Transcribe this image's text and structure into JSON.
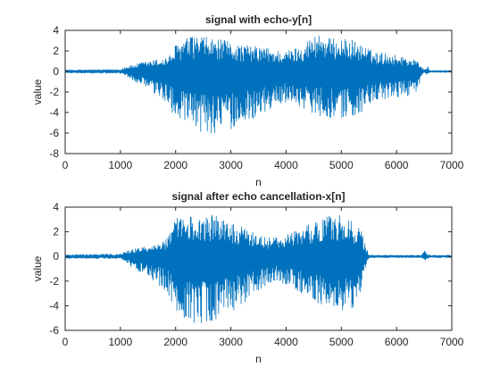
{
  "colors": {
    "line": "#0072BD",
    "axis": "#262626",
    "background": "#ffffff"
  },
  "chart_data": [
    {
      "type": "line",
      "title": "signal with echo-y[n]",
      "xlabel": "n",
      "ylabel": "value",
      "xlim": [
        0,
        7000
      ],
      "ylim": [
        -8,
        4
      ],
      "xticks": [
        0,
        1000,
        2000,
        3000,
        4000,
        5000,
        6000,
        7000
      ],
      "yticks": [
        -8,
        -6,
        -4,
        -2,
        0,
        2,
        4
      ],
      "grid": false,
      "legend": "none",
      "series": [
        {
          "color": "#0072BD",
          "envelope": {
            "n": [
              0,
              1000,
              1100,
              1200,
              1400,
              1600,
              1800,
              1900,
              2000,
              2200,
              2400,
              2600,
              2800,
              3000,
              3200,
              3400,
              3600,
              3800,
              4000,
              4200,
              4400,
              4600,
              4800,
              5000,
              5200,
              5400,
              5600,
              5800,
              6000,
              6200,
              6400,
              6450,
              6500,
              6560,
              6600,
              7000
            ],
            "upper": [
              0.15,
              0.2,
              0.5,
              0.6,
              0.9,
              1.1,
              1.3,
              1.6,
              2.6,
              3.3,
              3.5,
              3.3,
              3.1,
              2.9,
              2.6,
              2.5,
              2.4,
              2.1,
              2.0,
              2.4,
              3.1,
              3.9,
              3.2,
              3.2,
              3.1,
              2.5,
              1.9,
              1.8,
              1.6,
              1.4,
              1.0,
              0.5,
              0.2,
              0.5,
              0.1,
              0.1
            ],
            "lower": [
              -0.15,
              -0.2,
              -0.5,
              -0.8,
              -1.5,
              -2.2,
              -3.0,
              -3.6,
              -4.6,
              -5.6,
              -6.0,
              -6.2,
              -5.9,
              -5.7,
              -5.1,
              -4.6,
              -4.1,
              -3.5,
              -3.0,
              -3.2,
              -3.9,
              -4.3,
              -4.5,
              -4.8,
              -4.4,
              -4.0,
              -3.2,
              -2.8,
              -2.6,
              -2.4,
              -1.8,
              -0.5,
              -0.2,
              -0.4,
              -0.1,
              -0.1
            ]
          }
        }
      ]
    },
    {
      "type": "line",
      "title": "signal after echo cancellation-x[n]",
      "xlabel": "n",
      "ylabel": "value",
      "xlim": [
        0,
        7000
      ],
      "ylim": [
        -6,
        4
      ],
      "xticks": [
        0,
        1000,
        2000,
        3000,
        4000,
        5000,
        6000,
        7000
      ],
      "yticks": [
        -6,
        -4,
        -2,
        0,
        2,
        4
      ],
      "grid": false,
      "legend": "none",
      "series": [
        {
          "color": "#0072BD",
          "envelope": {
            "n": [
              0,
              1000,
              1100,
              1200,
              1400,
              1600,
              1800,
              1900,
              2000,
              2200,
              2400,
              2600,
              2800,
              3000,
              3200,
              3400,
              3600,
              3800,
              4000,
              4200,
              4400,
              4600,
              4800,
              5000,
              5200,
              5350,
              5450,
              5500,
              6000,
              6450,
              6500,
              6550,
              6600,
              7000
            ],
            "upper": [
              0.15,
              0.2,
              0.4,
              0.6,
              0.8,
              1.1,
              1.4,
              1.8,
              3.1,
              3.3,
              3.3,
              3.5,
              3.2,
              2.7,
              2.4,
              2.1,
              1.7,
              1.5,
              1.8,
              2.2,
              2.6,
              2.9,
              3.4,
              3.5,
              3.0,
              2.3,
              0.8,
              0.1,
              0.1,
              0.1,
              0.5,
              0.2,
              0.1,
              0.1
            ],
            "lower": [
              -0.15,
              -0.2,
              -0.4,
              -0.9,
              -1.4,
              -2.0,
              -2.7,
              -3.4,
              -4.3,
              -5.2,
              -5.5,
              -5.6,
              -5.0,
              -4.5,
              -4.0,
              -3.2,
              -2.5,
              -2.0,
              -2.3,
              -2.9,
              -3.5,
              -4.0,
              -4.4,
              -4.7,
              -4.3,
              -3.0,
              -0.9,
              -0.1,
              -0.1,
              -0.1,
              -0.4,
              -0.2,
              -0.1,
              -0.1
            ]
          }
        }
      ]
    }
  ]
}
